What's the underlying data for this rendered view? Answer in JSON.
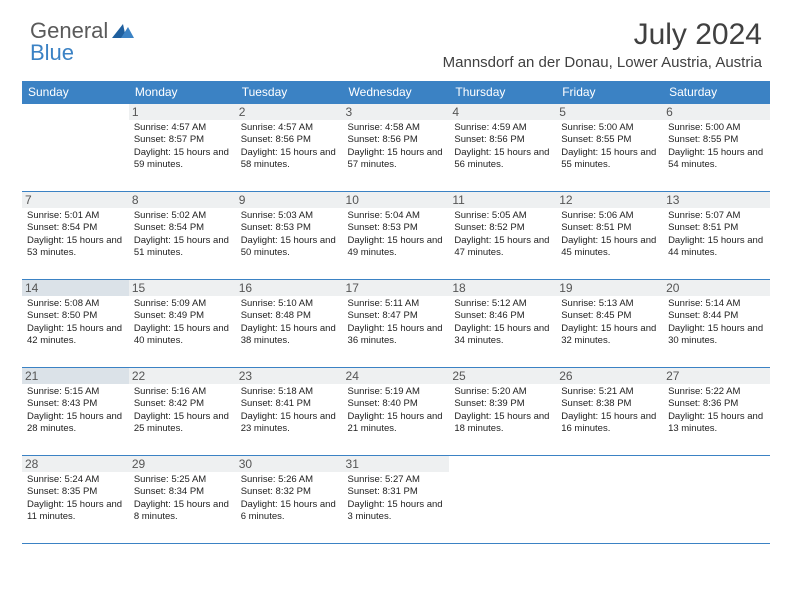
{
  "brand": {
    "part1": "General",
    "part2": "Blue"
  },
  "title": "July 2024",
  "location": "Mannsdorf an der Donau, Lower Austria, Austria",
  "colors": {
    "header_bg": "#3b82c4",
    "header_text": "#ffffff",
    "border": "#3b82c4",
    "daynum_bg": "#eef0f1",
    "daynum_highlight_bg": "#dbe2e8",
    "text": "#222222",
    "title_text": "#404040"
  },
  "weekdays": [
    "Sunday",
    "Monday",
    "Tuesday",
    "Wednesday",
    "Thursday",
    "Friday",
    "Saturday"
  ],
  "start_weekday": 1,
  "days": [
    {
      "n": 1,
      "sr": "4:57 AM",
      "ss": "8:57 PM",
      "dl": "15 hours and 59 minutes"
    },
    {
      "n": 2,
      "sr": "4:57 AM",
      "ss": "8:56 PM",
      "dl": "15 hours and 58 minutes"
    },
    {
      "n": 3,
      "sr": "4:58 AM",
      "ss": "8:56 PM",
      "dl": "15 hours and 57 minutes"
    },
    {
      "n": 4,
      "sr": "4:59 AM",
      "ss": "8:56 PM",
      "dl": "15 hours and 56 minutes"
    },
    {
      "n": 5,
      "sr": "5:00 AM",
      "ss": "8:55 PM",
      "dl": "15 hours and 55 minutes"
    },
    {
      "n": 6,
      "sr": "5:00 AM",
      "ss": "8:55 PM",
      "dl": "15 hours and 54 minutes"
    },
    {
      "n": 7,
      "sr": "5:01 AM",
      "ss": "8:54 PM",
      "dl": "15 hours and 53 minutes"
    },
    {
      "n": 8,
      "sr": "5:02 AM",
      "ss": "8:54 PM",
      "dl": "15 hours and 51 minutes"
    },
    {
      "n": 9,
      "sr": "5:03 AM",
      "ss": "8:53 PM",
      "dl": "15 hours and 50 minutes"
    },
    {
      "n": 10,
      "sr": "5:04 AM",
      "ss": "8:53 PM",
      "dl": "15 hours and 49 minutes"
    },
    {
      "n": 11,
      "sr": "5:05 AM",
      "ss": "8:52 PM",
      "dl": "15 hours and 47 minutes"
    },
    {
      "n": 12,
      "sr": "5:06 AM",
      "ss": "8:51 PM",
      "dl": "15 hours and 45 minutes"
    },
    {
      "n": 13,
      "sr": "5:07 AM",
      "ss": "8:51 PM",
      "dl": "15 hours and 44 minutes"
    },
    {
      "n": 14,
      "sr": "5:08 AM",
      "ss": "8:50 PM",
      "dl": "15 hours and 42 minutes"
    },
    {
      "n": 15,
      "sr": "5:09 AM",
      "ss": "8:49 PM",
      "dl": "15 hours and 40 minutes"
    },
    {
      "n": 16,
      "sr": "5:10 AM",
      "ss": "8:48 PM",
      "dl": "15 hours and 38 minutes"
    },
    {
      "n": 17,
      "sr": "5:11 AM",
      "ss": "8:47 PM",
      "dl": "15 hours and 36 minutes"
    },
    {
      "n": 18,
      "sr": "5:12 AM",
      "ss": "8:46 PM",
      "dl": "15 hours and 34 minutes"
    },
    {
      "n": 19,
      "sr": "5:13 AM",
      "ss": "8:45 PM",
      "dl": "15 hours and 32 minutes"
    },
    {
      "n": 20,
      "sr": "5:14 AM",
      "ss": "8:44 PM",
      "dl": "15 hours and 30 minutes"
    },
    {
      "n": 21,
      "sr": "5:15 AM",
      "ss": "8:43 PM",
      "dl": "15 hours and 28 minutes"
    },
    {
      "n": 22,
      "sr": "5:16 AM",
      "ss": "8:42 PM",
      "dl": "15 hours and 25 minutes"
    },
    {
      "n": 23,
      "sr": "5:18 AM",
      "ss": "8:41 PM",
      "dl": "15 hours and 23 minutes"
    },
    {
      "n": 24,
      "sr": "5:19 AM",
      "ss": "8:40 PM",
      "dl": "15 hours and 21 minutes"
    },
    {
      "n": 25,
      "sr": "5:20 AM",
      "ss": "8:39 PM",
      "dl": "15 hours and 18 minutes"
    },
    {
      "n": 26,
      "sr": "5:21 AM",
      "ss": "8:38 PM",
      "dl": "15 hours and 16 minutes"
    },
    {
      "n": 27,
      "sr": "5:22 AM",
      "ss": "8:36 PM",
      "dl": "15 hours and 13 minutes"
    },
    {
      "n": 28,
      "sr": "5:24 AM",
      "ss": "8:35 PM",
      "dl": "15 hours and 11 minutes"
    },
    {
      "n": 29,
      "sr": "5:25 AM",
      "ss": "8:34 PM",
      "dl": "15 hours and 8 minutes"
    },
    {
      "n": 30,
      "sr": "5:26 AM",
      "ss": "8:32 PM",
      "dl": "15 hours and 6 minutes"
    },
    {
      "n": 31,
      "sr": "5:27 AM",
      "ss": "8:31 PM",
      "dl": "15 hours and 3 minutes"
    }
  ],
  "highlight_sundays": [
    14,
    21
  ],
  "labels": {
    "sunrise": "Sunrise:",
    "sunset": "Sunset:",
    "daylight": "Daylight:"
  }
}
